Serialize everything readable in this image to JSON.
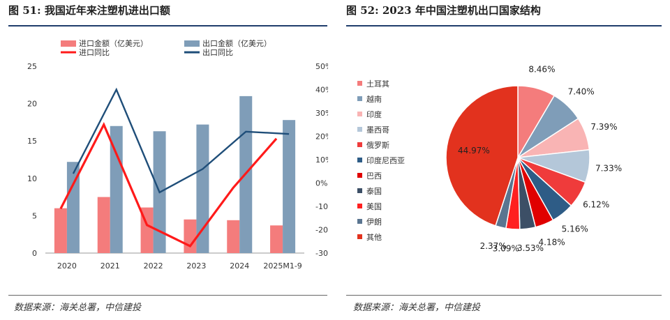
{
  "fig51": {
    "title": "图 51:  我国近年来注塑机进出口额",
    "source": "数据来源：海关总署，中信建投"
  },
  "fig52": {
    "title": "图 52: 2023 年中国注塑机出口国家结构",
    "source": "数据来源：海关总署，中信建投"
  },
  "chart_data": [
    {
      "type": "bar",
      "title": "我国近年来注塑机进出口额",
      "categories": [
        "2020",
        "2021",
        "2022",
        "2023",
        "2024",
        "2025M1-9"
      ],
      "ylim": [
        0,
        25
      ],
      "yticks": [
        "0",
        "5",
        "10",
        "15",
        "20",
        "25"
      ],
      "y2lim": [
        -30,
        50
      ],
      "y2ticks": [
        "-30%",
        "-20%",
        "-10%",
        "0%",
        "10%",
        "20%",
        "30%",
        "40%",
        "50%"
      ],
      "legend_position": "top",
      "series": [
        {
          "name": "进口金额（亿美元）",
          "kind": "bar",
          "axis": "left",
          "color": "#f47c7c",
          "values": [
            6.0,
            7.5,
            6.1,
            4.5,
            4.4,
            3.7
          ]
        },
        {
          "name": "出口金额（亿美元）",
          "kind": "bar",
          "axis": "left",
          "color": "#7f9db8",
          "values": [
            12.2,
            17.0,
            16.3,
            17.2,
            21.0,
            17.8
          ]
        },
        {
          "name": "进口同比",
          "kind": "line",
          "axis": "right",
          "color": "#ff1a1a",
          "values": [
            -11,
            25,
            -18,
            -27,
            -2,
            19
          ]
        },
        {
          "name": "出口同比",
          "kind": "line",
          "axis": "right",
          "color": "#1f4e79",
          "values": [
            4,
            40,
            -4,
            6,
            22,
            21
          ]
        }
      ]
    },
    {
      "type": "pie",
      "title": "2023 年中国注塑机出口国家结构",
      "legend_position": "left",
      "labels": [
        "土耳其",
        "越南",
        "印度",
        "墨西哥",
        "俄罗斯",
        "印度尼西亚",
        "巴西",
        "泰国",
        "美国",
        "伊朗",
        "其他"
      ],
      "values": [
        8.46,
        7.4,
        7.39,
        7.33,
        6.12,
        5.16,
        4.18,
        3.53,
        3.09,
        2.37,
        44.97
      ],
      "value_labels": [
        "8.46%",
        "7.40%",
        "7.39%",
        "7.33%",
        "6.12%",
        "5.16%",
        "4.18%",
        "3.53%",
        "3.09%",
        "2.37%",
        "44.97%"
      ],
      "colors": [
        "#f47c7c",
        "#7f9db8",
        "#f9b4b4",
        "#b4c7d9",
        "#ef3b3b",
        "#2e5c86",
        "#e00000",
        "#3c4f66",
        "#ff2020",
        "#5a7590",
        "#e2321e"
      ]
    }
  ]
}
